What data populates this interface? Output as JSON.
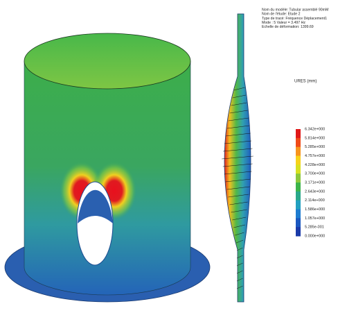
{
  "info": [
    "Nom du modèle: Tubular assemblé 90mM",
    "Nom de l'étude: Etude 2",
    "Type de tracé: Fréquence Déplacement1",
    "Mode : 5  Valeur =      3.497 Hz",
    "Echelle de déformation: 1399.69"
  ],
  "legend": {
    "title": "URES (mm)",
    "labels": [
      "6.342e+000",
      "5.814e+000",
      "5.285e+000",
      "4.757e+000",
      "4.228e+000",
      "3.700e+000",
      "3.171e+000",
      "2.643e+000",
      "2.114e+000",
      "1.586e+000",
      "1.057e+000",
      "5.285e-001",
      "0.000e+000"
    ]
  }
}
